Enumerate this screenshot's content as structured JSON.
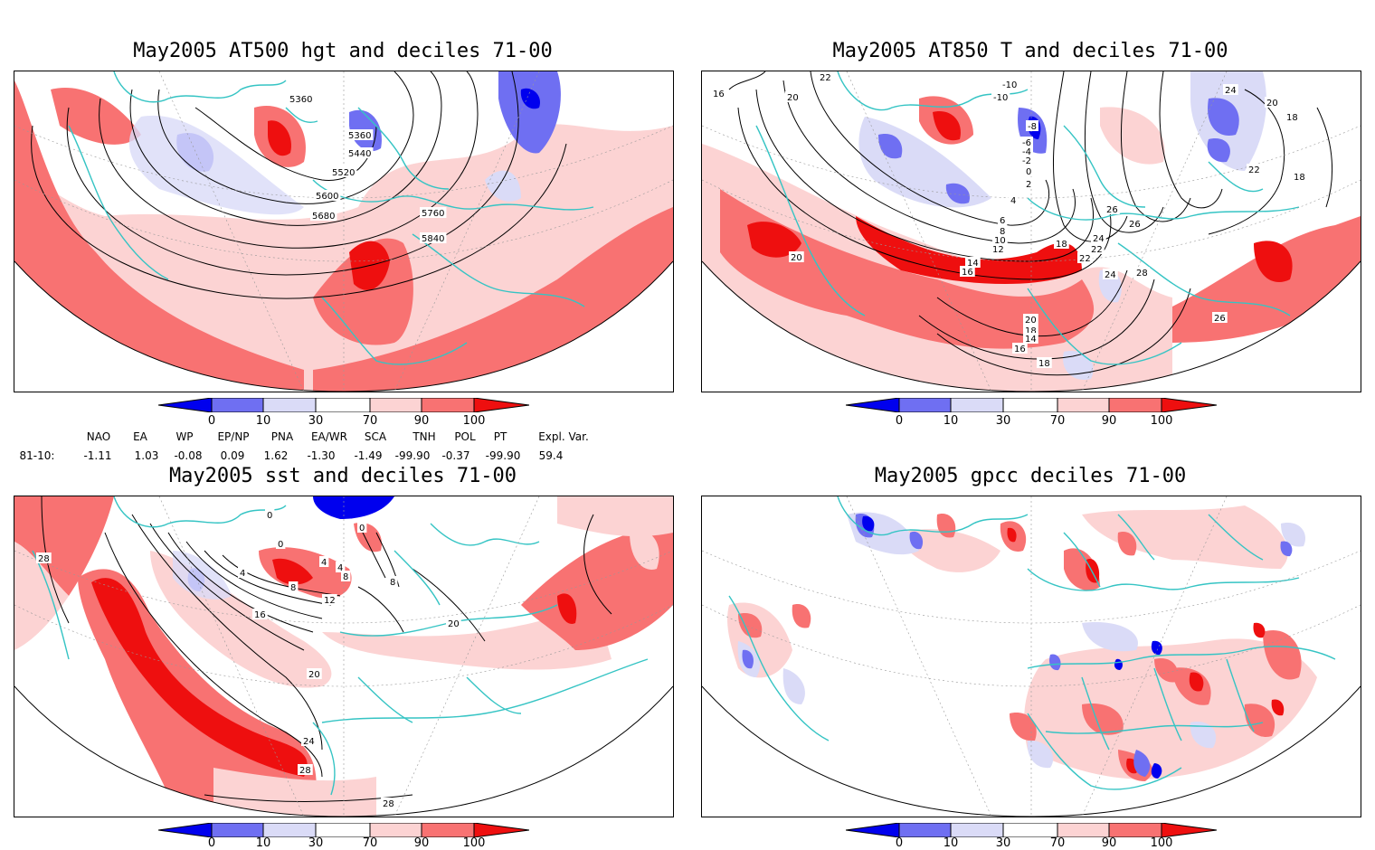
{
  "colors": {
    "deep_blue": "#0000ee",
    "mid_blue": "#6f6ff2",
    "light_blue": "#dadbf7",
    "light_red": "#fcd3d3",
    "mid_red": "#f87272",
    "deep_red": "#ee0f0f",
    "coast": "#35c4c4",
    "contour": "#000000"
  },
  "panels": [
    {
      "title": "May2005 AT500 hgt and deciles 71-00",
      "contour_labels": [
        "5360",
        "5360",
        "5440",
        "5520",
        "5600",
        "5680",
        "5760",
        "5840"
      ]
    },
    {
      "title": "May2005 AT850 T and deciles 71-00",
      "contour_labels": [
        "16",
        "20",
        "22",
        "-10",
        "-10",
        "-8",
        "-6",
        "-4",
        "-2",
        "0",
        "2",
        "4",
        "6",
        "8",
        "10",
        "12",
        "14",
        "16",
        "18",
        "22",
        "24",
        "28",
        "26",
        "26",
        "24",
        "22",
        "20",
        "18",
        "14",
        "16",
        "18",
        "20",
        "26",
        "24",
        "22",
        "20",
        "18",
        "18",
        "20",
        "24",
        "22",
        "26"
      ]
    },
    {
      "title": "May2005 sst and deciles 71-00",
      "contour_labels": [
        "28",
        "0",
        "0",
        "0",
        "4",
        "4",
        "4",
        "8",
        "8",
        "8",
        "12",
        "16",
        "20",
        "20",
        "24",
        "28",
        "28"
      ]
    },
    {
      "title": "May2005 gpcc deciles 71-00",
      "contour_labels": []
    }
  ],
  "colorbar": {
    "ticks": [
      "0",
      "10",
      "30",
      "70",
      "90",
      "100"
    ]
  },
  "indices": {
    "names": [
      "NAO",
      "EA",
      "WP",
      "EP/NP",
      "PNA",
      "EA/WR",
      "SCA",
      "TNH",
      "POL",
      "PT",
      "Expl. Var."
    ],
    "row_label": "81-10:",
    "values": [
      "-1.11",
      "1.03",
      "-0.08",
      "0.09",
      "1.62",
      "-1.30",
      "-1.49",
      "-99.90",
      "-0.37",
      "-99.90",
      "59.4"
    ]
  }
}
